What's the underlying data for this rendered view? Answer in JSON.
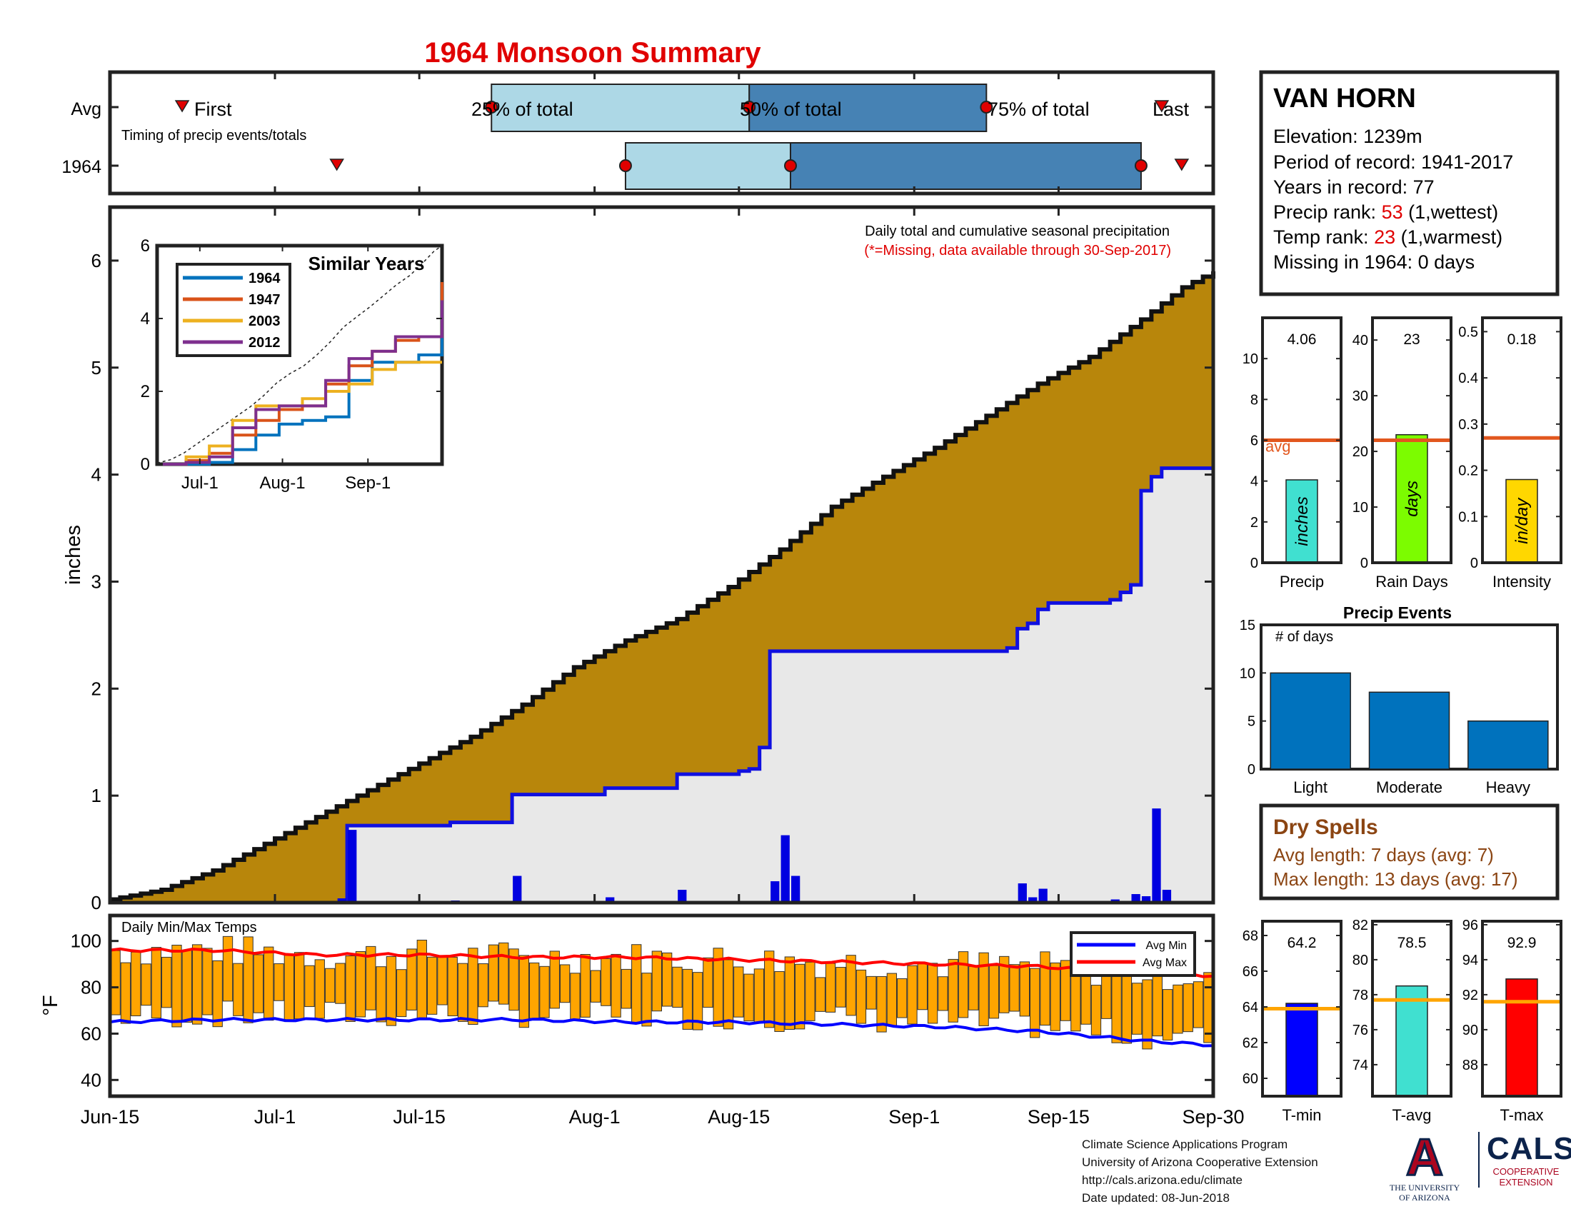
{
  "title": "1964 Monsoon Summary",
  "station": {
    "name": "VAN HORN",
    "elevation": "Elevation: 1239m",
    "period": "Period of record: 1941-2017",
    "years": "Years in record: 77",
    "precip_rank_label": "Precip rank: ",
    "precip_rank_value": "53",
    "precip_rank_note": " (1,wettest)",
    "temp_rank_label": "Temp rank: ",
    "temp_rank_value": "23",
    "temp_rank_note": " (1,warmest)",
    "missing": "Missing in 1964: 0 days"
  },
  "timing": {
    "row_labels": [
      "Avg",
      "1964"
    ],
    "subtitle": "Timing of precip events/totals",
    "first_label": "First",
    "last_label": "Last",
    "p25_label": "25% of total",
    "p50_label": "50% of total",
    "p75_label": "75% of total",
    "avg": {
      "first": 7,
      "p25": 37,
      "p50": 62,
      "p75": 85,
      "last": 102
    },
    "year": {
      "first": 22,
      "p25": 50,
      "p50": 66,
      "p75": 100,
      "last": 102
    }
  },
  "main_axis": {
    "ylabel": "inches",
    "yticks": [
      "0",
      "1",
      "2",
      "3",
      "4",
      "5",
      "6"
    ],
    "xticks": [
      {
        "day": 0,
        "label": "Jun-15"
      },
      {
        "day": 16,
        "label": "Jul-1"
      },
      {
        "day": 30,
        "label": "Jul-15"
      },
      {
        "day": 47,
        "label": "Aug-1"
      },
      {
        "day": 61,
        "label": "Aug-15"
      },
      {
        "day": 78,
        "label": "Sep-1"
      },
      {
        "day": 92,
        "label": "Sep-15"
      },
      {
        "day": 107,
        "label": "Sep-30"
      }
    ],
    "note1": "Daily total and cumulative seasonal precipitation",
    "note2": "(*=Missing, data available through 30-Sep-2017)"
  },
  "inset": {
    "title": "Similar Years",
    "yticks": [
      "0",
      "2",
      "4",
      "6"
    ],
    "xticks": [
      "Jul-1",
      "Aug-1",
      "Sep-1"
    ],
    "legend": [
      {
        "name": "1964",
        "color": "#0072bd"
      },
      {
        "name": "1947",
        "color": "#d95319"
      },
      {
        "name": "2003",
        "color": "#edb120"
      },
      {
        "name": "2012",
        "color": "#7e2f8e"
      }
    ]
  },
  "temp_panel": {
    "title": "Daily Min/Max Temps",
    "ylabel": "°F",
    "yticks": [
      "40",
      "60",
      "80",
      "100"
    ],
    "legend": [
      {
        "name": "Avg Min",
        "color": "#0000ff"
      },
      {
        "name": "Avg Max",
        "color": "#ff0000"
      }
    ]
  },
  "stat_bars": [
    {
      "label": "Precip",
      "value": "4.06",
      "value_num": 4.06,
      "avg": 6.0,
      "ymax": 12,
      "ticks": [
        "0",
        "2",
        "4",
        "6",
        "8",
        "10"
      ],
      "unit": "inches",
      "color": "#40e0d0",
      "avg_label": "avg"
    },
    {
      "label": "Rain Days",
      "value": "23",
      "value_num": 23,
      "avg": 22,
      "ymax": 44,
      "ticks": [
        "0",
        "10",
        "20",
        "30",
        "40"
      ],
      "unit": "days",
      "color": "#7cfc00"
    },
    {
      "label": "Intensity",
      "value": "0.18",
      "value_num": 0.18,
      "avg": 0.27,
      "ymax": 0.53,
      "ticks": [
        "0",
        "0.1",
        "0.2",
        "0.3",
        "0.4",
        "0.5"
      ],
      "unit": "in/day",
      "color": "#ffd700"
    }
  ],
  "precip_events": {
    "title": "Precip Events",
    "ylabel": "# of days",
    "yticks": [
      "0",
      "5",
      "10",
      "15"
    ],
    "categories": [
      "Light",
      "Moderate",
      "Heavy"
    ],
    "values": [
      10,
      8,
      5
    ]
  },
  "dry_spells": {
    "title": "Dry Spells",
    "avg_length": "Avg length: 7 days (avg: 7)",
    "max_length": "Max length: 13 days (avg: 17)"
  },
  "temp_bars": [
    {
      "label": "T-min",
      "value": "64.2",
      "value_num": 64.2,
      "avg": 63.9,
      "ymin": 59,
      "ymax": 68.8,
      "ticks": [
        "60",
        "62",
        "64",
        "66",
        "68"
      ],
      "color": "#0000ff"
    },
    {
      "label": "T-avg",
      "value": "78.5",
      "value_num": 78.5,
      "avg": 77.7,
      "ymin": 72.2,
      "ymax": 82.2,
      "ticks": [
        "74",
        "76",
        "78",
        "80",
        "82"
      ],
      "color": "#40e0d0"
    },
    {
      "label": "T-max",
      "value": "92.9",
      "value_num": 92.9,
      "avg": 91.6,
      "ymin": 86.2,
      "ymax": 96.2,
      "ticks": [
        "88",
        "90",
        "92",
        "94",
        "96"
      ],
      "color": "#ff0000"
    }
  ],
  "footer": {
    "line1": "Climate Science Applications Program",
    "line2": "University of Arizona Cooperative Extension",
    "line3": "http://cals.arizona.edu/climate",
    "line4": " Date updated: 08-Jun-2018"
  },
  "logos": {
    "ua_letter": "A",
    "ua_line1": "THE UNIVERSITY",
    "ua_line2": "OF ARIZONA",
    "cals": "CALS",
    "coop1": "COOPERATIVE",
    "coop2": "EXTENSION"
  },
  "chart_data": [
    {
      "type": "area",
      "title": "Daily total and cumulative seasonal precipitation",
      "ylabel": "inches",
      "ylim": [
        0,
        6.5
      ],
      "xlim": [
        0,
        107
      ],
      "series": [
        {
          "name": "Avg cumulative",
          "x": [
            0,
            5,
            10,
            15,
            20,
            25,
            30,
            35,
            40,
            45,
            50,
            55,
            60,
            65,
            70,
            75,
            80,
            85,
            90,
            95,
            100,
            104,
            107
          ],
          "values": [
            0.03,
            0.12,
            0.3,
            0.55,
            0.8,
            1.05,
            1.3,
            1.55,
            1.85,
            2.2,
            2.45,
            2.65,
            2.95,
            3.3,
            3.7,
            3.98,
            4.25,
            4.55,
            4.85,
            5.1,
            5.45,
            5.75,
            5.9
          ]
        },
        {
          "name": "1964 cumulative",
          "x": [
            0,
            22,
            23,
            32,
            38,
            47,
            54,
            60,
            63,
            64,
            107
          ],
          "values": [
            0.0,
            0.0,
            0.72,
            0.75,
            1.01,
            1.07,
            1.2,
            1.25,
            2.1,
            2.35,
            4.06
          ]
        },
        {
          "name": "1964 daily",
          "x": [
            22,
            23,
            33,
            39,
            48,
            55,
            64,
            65,
            66,
            88,
            89,
            90,
            97,
            99,
            100,
            101,
            102
          ],
          "values": [
            0.04,
            0.68,
            0.02,
            0.25,
            0.05,
            0.12,
            0.2,
            0.63,
            0.25,
            0.18,
            0.05,
            0.13,
            0.03,
            0.08,
            0.06,
            0.88,
            0.12
          ]
        }
      ]
    },
    {
      "type": "line",
      "title": "Similar Years",
      "ylim": [
        0,
        6
      ],
      "series": [
        {
          "name": "1964",
          "values": [
            0,
            0,
            0.05,
            0.4,
            0.8,
            1.1,
            1.2,
            1.3,
            2.3,
            2.8,
            2.8,
            3.0,
            4.06
          ]
        },
        {
          "name": "1947",
          "values": [
            0,
            0.1,
            0.3,
            0.8,
            1.2,
            1.5,
            1.6,
            2.2,
            2.7,
            3.1,
            3.4,
            3.5,
            5.0
          ]
        },
        {
          "name": "2003",
          "values": [
            0,
            0.2,
            0.5,
            1.2,
            1.6,
            1.6,
            1.8,
            2.0,
            2.2,
            2.6,
            2.8,
            2.8,
            2.8
          ]
        },
        {
          "name": "2012",
          "values": [
            0,
            0.05,
            0.2,
            1.0,
            1.5,
            1.6,
            1.6,
            2.3,
            2.9,
            3.1,
            3.5,
            3.5,
            4.5
          ]
        }
      ]
    },
    {
      "type": "bar",
      "title": "Daily Min/Max Temps",
      "ylabel": "°F",
      "ylim": [
        33,
        111
      ],
      "series": [
        {
          "name": "Avg Max",
          "x": [
            0,
            10,
            20,
            30,
            40,
            50,
            60,
            70,
            80,
            90,
            100,
            107
          ],
          "values": [
            96,
            96,
            94,
            94,
            93,
            93,
            92,
            91,
            90,
            89,
            86,
            85
          ]
        },
        {
          "name": "Avg Min",
          "x": [
            0,
            10,
            20,
            30,
            40,
            50,
            60,
            70,
            80,
            90,
            100,
            107
          ],
          "values": [
            65,
            66,
            66,
            66,
            66,
            65,
            65,
            64,
            63,
            61,
            57,
            55
          ]
        }
      ]
    },
    {
      "type": "bar",
      "title": "Precip Events",
      "categories": [
        "Light",
        "Moderate",
        "Heavy"
      ],
      "values": [
        10,
        8,
        5
      ],
      "ylim": [
        0,
        15
      ]
    }
  ]
}
